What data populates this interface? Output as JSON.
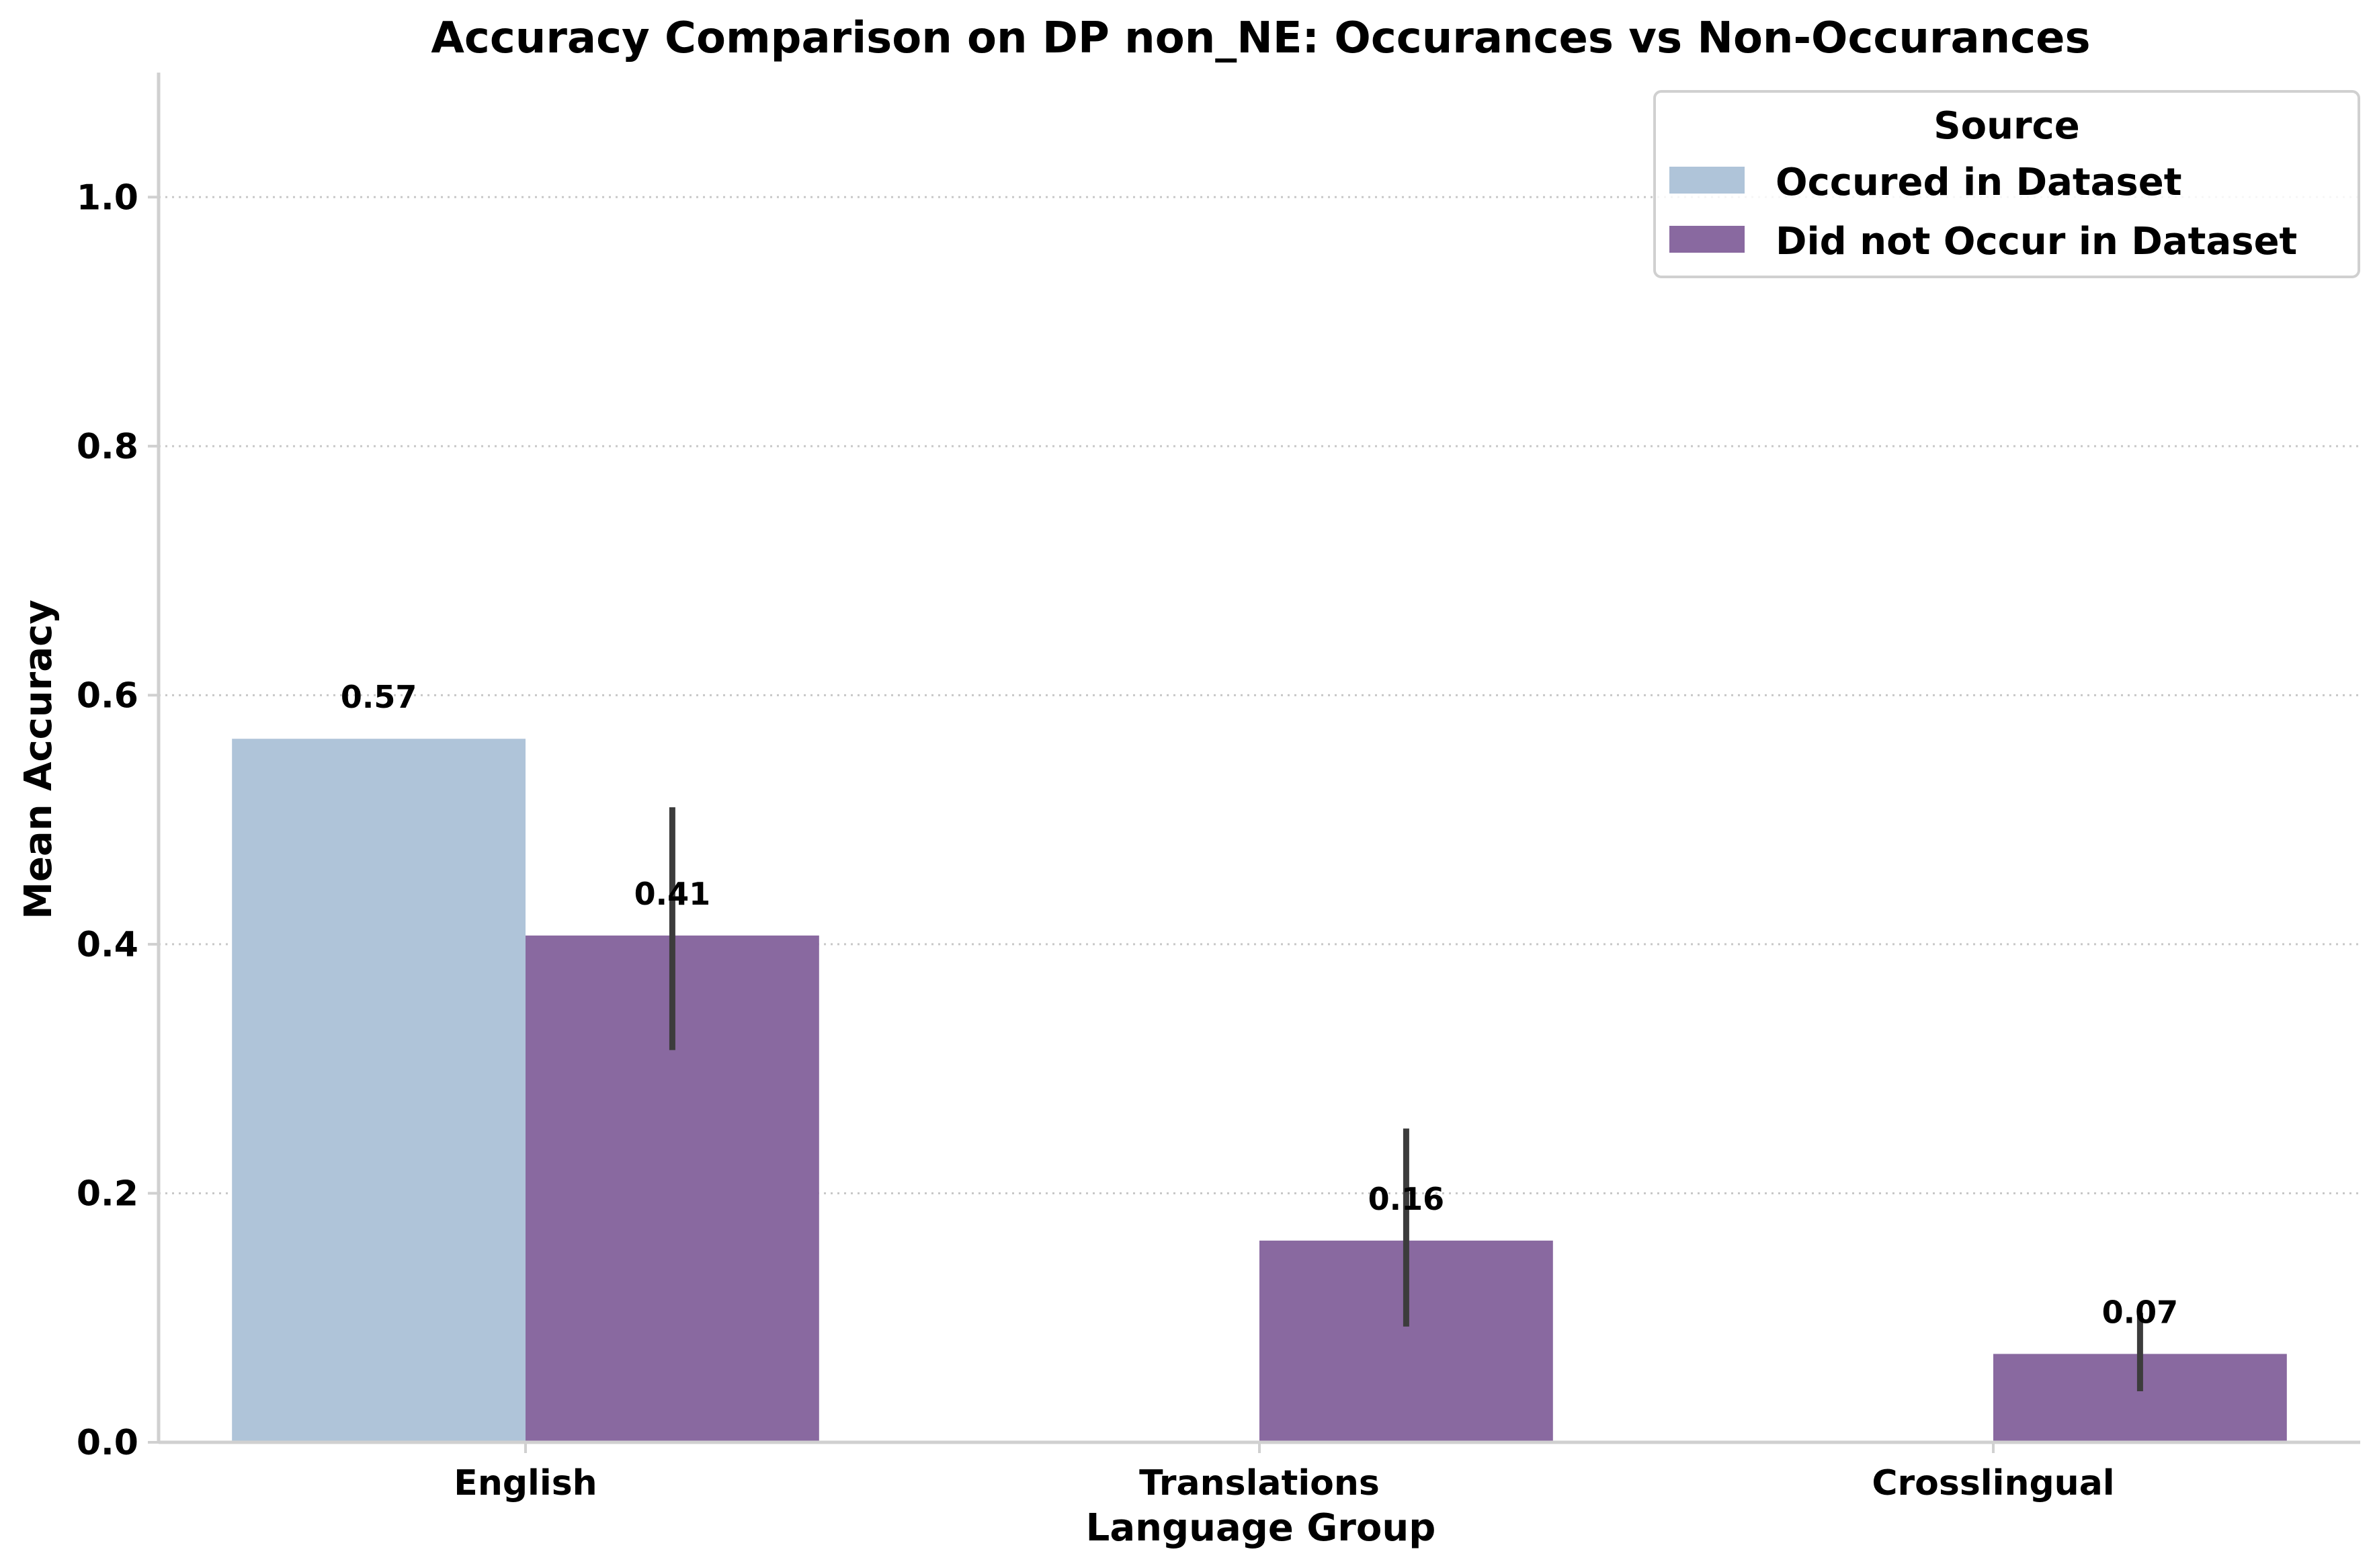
{
  "chart_data": {
    "type": "bar",
    "title": "Accuracy Comparison on DP non_NE: Occurances vs Non-Occurances",
    "xlabel": "Language Group",
    "ylabel": "Mean Accuracy",
    "categories": [
      "English",
      "Translations",
      "Crosslingual"
    ],
    "ylim": [
      0,
      1.1
    ],
    "yticks": [
      0.0,
      0.2,
      0.4,
      0.6,
      0.8,
      1.0
    ],
    "ytick_labels": [
      "0.0",
      "0.2",
      "0.4",
      "0.6",
      "0.8",
      "1.0"
    ],
    "grid": "horizontal-dotted",
    "legend": {
      "title": "Source",
      "placement": "top-right"
    },
    "series": [
      {
        "name": "Occured in Dataset",
        "color": "#afc4d9",
        "values": [
          0.565,
          null,
          null
        ],
        "labels": [
          "0.57",
          null,
          null
        ],
        "error_low": [
          null,
          null,
          null
        ],
        "error_high": [
          null,
          null,
          null
        ]
      },
      {
        "name": "Did not Occur in Dataset",
        "color": "#8969a0",
        "values": [
          0.407,
          0.162,
          0.071
        ],
        "labels": [
          "0.41",
          "0.16",
          "0.07"
        ],
        "error_low": [
          0.315,
          0.093,
          0.041
        ],
        "error_high": [
          0.51,
          0.252,
          0.104
        ]
      }
    ]
  }
}
